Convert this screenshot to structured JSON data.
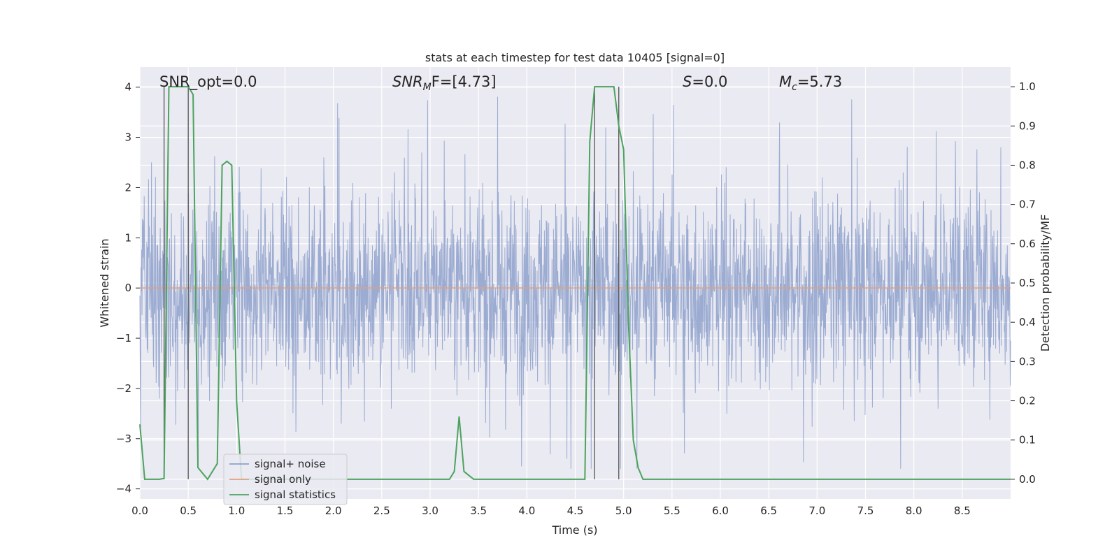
{
  "chart_data": {
    "type": "line",
    "title": "stats at each timestep for test data 10405 [signal=0]",
    "xlabel": "Time (s)",
    "ylabel_left": "Whitened strain",
    "ylabel_right": "Detection probability/MF",
    "xlim": [
      0.0,
      9.0
    ],
    "ylim_left": [
      -4.2,
      4.4
    ],
    "ylim_right": [
      -0.05,
      1.05
    ],
    "xticks": [
      "0.0",
      "0.5",
      "1.0",
      "1.5",
      "2.0",
      "2.5",
      "3.0",
      "3.5",
      "4.0",
      "4.5",
      "5.0",
      "5.5",
      "6.0",
      "6.5",
      "7.0",
      "7.5",
      "8.0",
      "8.5"
    ],
    "yticks_left": [
      "4",
      "3",
      "2",
      "1",
      "0",
      "−1",
      "−2",
      "−3",
      "−4"
    ],
    "yticks_right": [
      "1.0",
      "0.9",
      "0.8",
      "0.7",
      "0.6",
      "0.5",
      "0.4",
      "0.3",
      "0.2",
      "0.1",
      "0.0"
    ],
    "grid": true,
    "legend_position": "lower-left",
    "legend": [
      {
        "name": "signal+ noise",
        "color": "#8da0cb"
      },
      {
        "name": "signal only",
        "color": "#e1a07f"
      },
      {
        "name": "signal statistics",
        "color": "#4ca35e"
      }
    ],
    "annotations": {
      "snr_opt": "SNR_opt=0.0",
      "snr_mf_base": "SNR",
      "snr_mf_sub": "M",
      "snr_mf_rest": "F=[4.73]",
      "s_stat_var": "S",
      "s_stat_rest": "=0.0",
      "mc_var": "M",
      "mc_sub": "c",
      "mc_rest": "=5.73"
    },
    "series": [
      {
        "name": "signal+ noise",
        "axis": "left",
        "kind": "dense noise, amplitude roughly ±2 with peaks to about 4.0 and −3.6",
        "color": "#8da0cb"
      },
      {
        "name": "signal only",
        "axis": "left",
        "x": [
          0.0,
          9.0
        ],
        "y": [
          0.0,
          0.0
        ],
        "color": "#e1a07f"
      },
      {
        "name": "signal statistics",
        "axis": "right",
        "color": "#4ca35e",
        "x": [
          0.0,
          0.05,
          0.1,
          0.2,
          0.25,
          0.3,
          0.35,
          0.4,
          0.45,
          0.5,
          0.55,
          0.6,
          0.7,
          0.8,
          0.85,
          0.9,
          0.95,
          1.0,
          1.05,
          1.1,
          1.2,
          3.2,
          3.25,
          3.3,
          3.35,
          3.4,
          3.45,
          3.5,
          4.6,
          4.65,
          4.7,
          4.75,
          4.8,
          4.85,
          4.9,
          4.95,
          5.0,
          5.05,
          5.1,
          5.15,
          5.2,
          5.25,
          9.0
        ],
        "y": [
          0.14,
          0.0,
          0.0,
          0.0,
          0.002,
          1.0,
          1.0,
          1.0,
          1.0,
          1.0,
          0.98,
          0.03,
          0.0,
          0.04,
          0.8,
          0.81,
          0.8,
          0.2,
          0.0,
          0.0,
          0.0,
          0.0,
          0.02,
          0.16,
          0.02,
          0.01,
          0.0,
          0.0,
          0.0,
          0.86,
          1.0,
          1.0,
          1.0,
          1.0,
          1.0,
          0.9,
          0.84,
          0.4,
          0.1,
          0.03,
          0.0,
          0.0,
          0.0
        ]
      }
    ],
    "vertical_markers": [
      0.25,
      0.5,
      4.7,
      4.95
    ]
  }
}
